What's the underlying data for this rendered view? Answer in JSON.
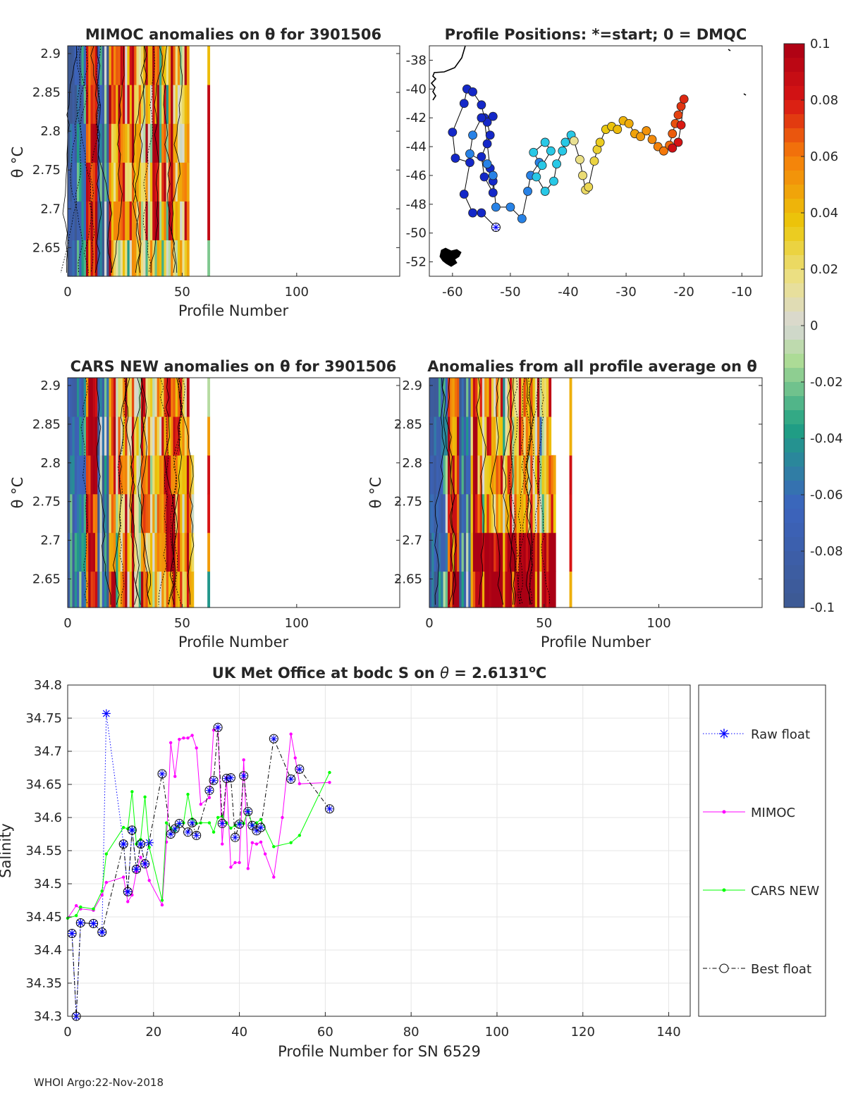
{
  "footer": "WHOI Argo:22-Nov-2018",
  "colorbar": {
    "ticks": [
      "0.1",
      "0.08",
      "0.06",
      "0.04",
      "0.02",
      "0",
      "-0.02",
      "-0.04",
      "-0.06",
      "-0.08",
      "-0.1"
    ],
    "range": [
      -0.1,
      0.1
    ]
  },
  "chart_data": [
    {
      "type": "heatmap",
      "title": "MIMOC anomalies on θ  for 3901506",
      "xlabel": "Profile Number",
      "ylabel": "θ °C",
      "xlim": [
        0,
        145
      ],
      "ylim": [
        2.6131,
        2.91
      ],
      "xticks": [
        "0",
        "50",
        "100"
      ],
      "yticks": [
        "2.9",
        "2.85",
        "2.8",
        "2.75",
        "2.7",
        "2.65"
      ]
    },
    {
      "type": "scatter",
      "title": "Profile Positions: *=start; 0 = DMQC",
      "xlim": [
        -64,
        -6.5
      ],
      "ylim": [
        -53,
        -37
      ],
      "xticks": [
        "-60",
        "-50",
        "-40",
        "-30",
        "-20",
        "-10"
      ],
      "yticks": [
        "-38",
        "-40",
        "-42",
        "-44",
        "-46",
        "-48",
        "-50",
        "-52"
      ],
      "lon": [
        -52.5,
        -55,
        -56.5,
        -58,
        -57,
        -59.5,
        -60,
        -58,
        -57.5,
        -56.5,
        -55,
        -54.5,
        -54,
        -53.5,
        -53,
        -53,
        -54.5,
        -55,
        -53.5,
        -54,
        -53,
        -55,
        -56.5,
        -57,
        -54,
        -53,
        -52.5,
        -50,
        -48,
        -47,
        -46.5,
        -45,
        -46,
        -44,
        -43,
        -44.5,
        -45.5,
        -44,
        -42.5,
        -42,
        -41,
        -40.5,
        -39.5,
        -39,
        -38,
        -37.5,
        -37,
        -36.5,
        -35.5,
        -35,
        -34.5,
        -33.5,
        -32.5,
        -31.5,
        -30.5,
        -29.5,
        -28.5,
        -27.5,
        -26.5,
        -25.5,
        -24.5,
        -23.5,
        -22.5,
        -22,
        -21.5,
        -21,
        -20.5,
        -20,
        -20.5,
        -21,
        -22
      ],
      "lat": [
        -49.6,
        -48.6,
        -48.6,
        -47.3,
        -45.1,
        -44.8,
        -43,
        -41,
        -40,
        -40.2,
        -41.1,
        -42,
        -43.8,
        -45.5,
        -46.4,
        -47.2,
        -46.1,
        -44.7,
        -43.2,
        -42.3,
        -41.9,
        -42,
        -43.2,
        -44.5,
        -45.2,
        -46,
        -48.2,
        -48.2,
        -49,
        -47.1,
        -46,
        -45.1,
        -44.4,
        -43.7,
        -44.3,
        -45.3,
        -46.1,
        -47.1,
        -46.4,
        -45.2,
        -44.3,
        -43.7,
        -43.2,
        -43.6,
        -44.9,
        -46,
        -47,
        -46.8,
        -45,
        -44.2,
        -43.7,
        -42.8,
        -42.6,
        -42.8,
        -42.2,
        -42.4,
        -43.1,
        -43.3,
        -42.9,
        -43.5,
        -44,
        -44.3,
        -43.9,
        -43.1,
        -42.4,
        -41.8,
        -41.2,
        -40.7,
        -42.5,
        -43.7,
        -44.1
      ],
      "coast_note": "coastlines"
    },
    {
      "type": "heatmap",
      "title": "CARS NEW anomalies on θ for 3901506",
      "xlabel": "Profile Number",
      "ylabel": "θ °C",
      "xlim": [
        0,
        145
      ],
      "ylim": [
        2.6131,
        2.91
      ],
      "xticks": [
        "0",
        "50",
        "100"
      ],
      "yticks": [
        "2.9",
        "2.85",
        "2.8",
        "2.75",
        "2.7",
        "2.65"
      ]
    },
    {
      "type": "heatmap",
      "title": "Anomalies from all profile average on θ",
      "xlabel": "Profile Number",
      "ylabel": "θ °C",
      "xlim": [
        0,
        145
      ],
      "ylim": [
        2.6131,
        2.91
      ],
      "xticks": [
        "0",
        "50",
        "100"
      ],
      "yticks": [
        "2.9",
        "2.85",
        "2.8",
        "2.75",
        "2.7",
        "2.65"
      ]
    },
    {
      "type": "line",
      "title": "UK Met Office at bodc S on θ = 2.6131°C",
      "title_parts": {
        "pre": "UK Met Office at bodc S on ",
        "theta": "θ",
        "mid": " = 2.6131",
        "sup": "o",
        "post": "C"
      },
      "xlabel": "Profile Number for SN 6529",
      "ylabel": "Salinity",
      "xlim": [
        0,
        145
      ],
      "ylim": [
        34.3,
        34.8
      ],
      "xticks": [
        "0",
        "20",
        "40",
        "60",
        "80",
        "100",
        "120",
        "140"
      ],
      "yticks": [
        "34.3",
        "34.35",
        "34.4",
        "34.45",
        "34.5",
        "34.55",
        "34.6",
        "34.65",
        "34.7",
        "34.75",
        "34.8"
      ],
      "legend": [
        "Raw float",
        "MIMOC",
        "CARS NEW",
        "Best float"
      ],
      "series": [
        {
          "name": "Raw float",
          "x": [
            1,
            2,
            3,
            6,
            8,
            9,
            13,
            14,
            15,
            16,
            17,
            18,
            19
          ],
          "y": [
            34.425,
            34.3,
            34.441,
            34.44,
            34.427,
            34.757,
            34.56,
            34.488,
            34.581,
            34.522,
            34.56,
            34.53,
            34.562
          ]
        },
        {
          "name": "MIMOC",
          "x": [
            0,
            2,
            3,
            6,
            8,
            9,
            13,
            14,
            15,
            16,
            17,
            18,
            19,
            22,
            23,
            24,
            25,
            26,
            27,
            28,
            29,
            30,
            31,
            33,
            34,
            35,
            36,
            37,
            38,
            39,
            40,
            41,
            42,
            43,
            44,
            45,
            46,
            48,
            50,
            52,
            53,
            54,
            61
          ],
          "y": [
            34.448,
            34.467,
            34.462,
            34.46,
            34.483,
            34.502,
            34.51,
            34.473,
            34.483,
            34.518,
            34.54,
            34.53,
            34.505,
            34.468,
            34.563,
            34.713,
            34.662,
            34.718,
            34.72,
            34.72,
            34.724,
            34.705,
            34.62,
            34.63,
            34.732,
            34.736,
            34.56,
            34.66,
            34.525,
            34.532,
            34.532,
            34.687,
            34.523,
            34.562,
            34.56,
            34.563,
            34.545,
            34.51,
            34.6,
            34.726,
            34.69,
            34.651,
            34.653
          ]
        },
        {
          "name": "CARS NEW",
          "x": [
            0,
            2,
            3,
            6,
            8,
            9,
            13,
            14,
            15,
            16,
            17,
            18,
            19,
            22,
            23,
            24,
            25,
            26,
            27,
            28,
            29,
            30,
            31,
            33,
            34,
            35,
            36,
            37,
            38,
            39,
            40,
            41,
            42,
            43,
            44,
            45,
            48,
            52,
            54,
            61
          ],
          "y": [
            34.448,
            34.452,
            34.465,
            34.462,
            34.489,
            34.545,
            34.585,
            34.583,
            34.639,
            34.56,
            34.567,
            34.631,
            34.555,
            34.475,
            34.592,
            34.584,
            34.58,
            34.59,
            34.592,
            34.635,
            34.598,
            34.591,
            34.592,
            34.592,
            34.578,
            34.6,
            34.602,
            34.592,
            34.584,
            34.588,
            34.592,
            34.591,
            34.611,
            34.588,
            34.592,
            34.597,
            34.556,
            34.562,
            34.573,
            34.668
          ]
        },
        {
          "name": "Best float",
          "x": [
            1,
            2,
            3,
            6,
            8,
            13,
            14,
            15,
            16,
            17,
            18,
            22,
            24,
            25,
            26,
            28,
            29,
            30,
            33,
            34,
            35,
            36,
            37,
            38,
            39,
            40,
            41,
            42,
            43,
            44,
            45,
            48,
            52,
            54,
            61
          ],
          "y": [
            34.425,
            34.3,
            34.441,
            34.44,
            34.427,
            34.56,
            34.488,
            34.581,
            34.522,
            34.56,
            34.53,
            34.666,
            34.575,
            34.583,
            34.591,
            34.578,
            34.592,
            34.573,
            34.641,
            34.656,
            34.736,
            34.591,
            34.659,
            34.66,
            34.57,
            34.59,
            34.663,
            34.609,
            34.588,
            34.58,
            34.585,
            34.719,
            34.658,
            34.673,
            34.613
          ]
        }
      ]
    }
  ]
}
